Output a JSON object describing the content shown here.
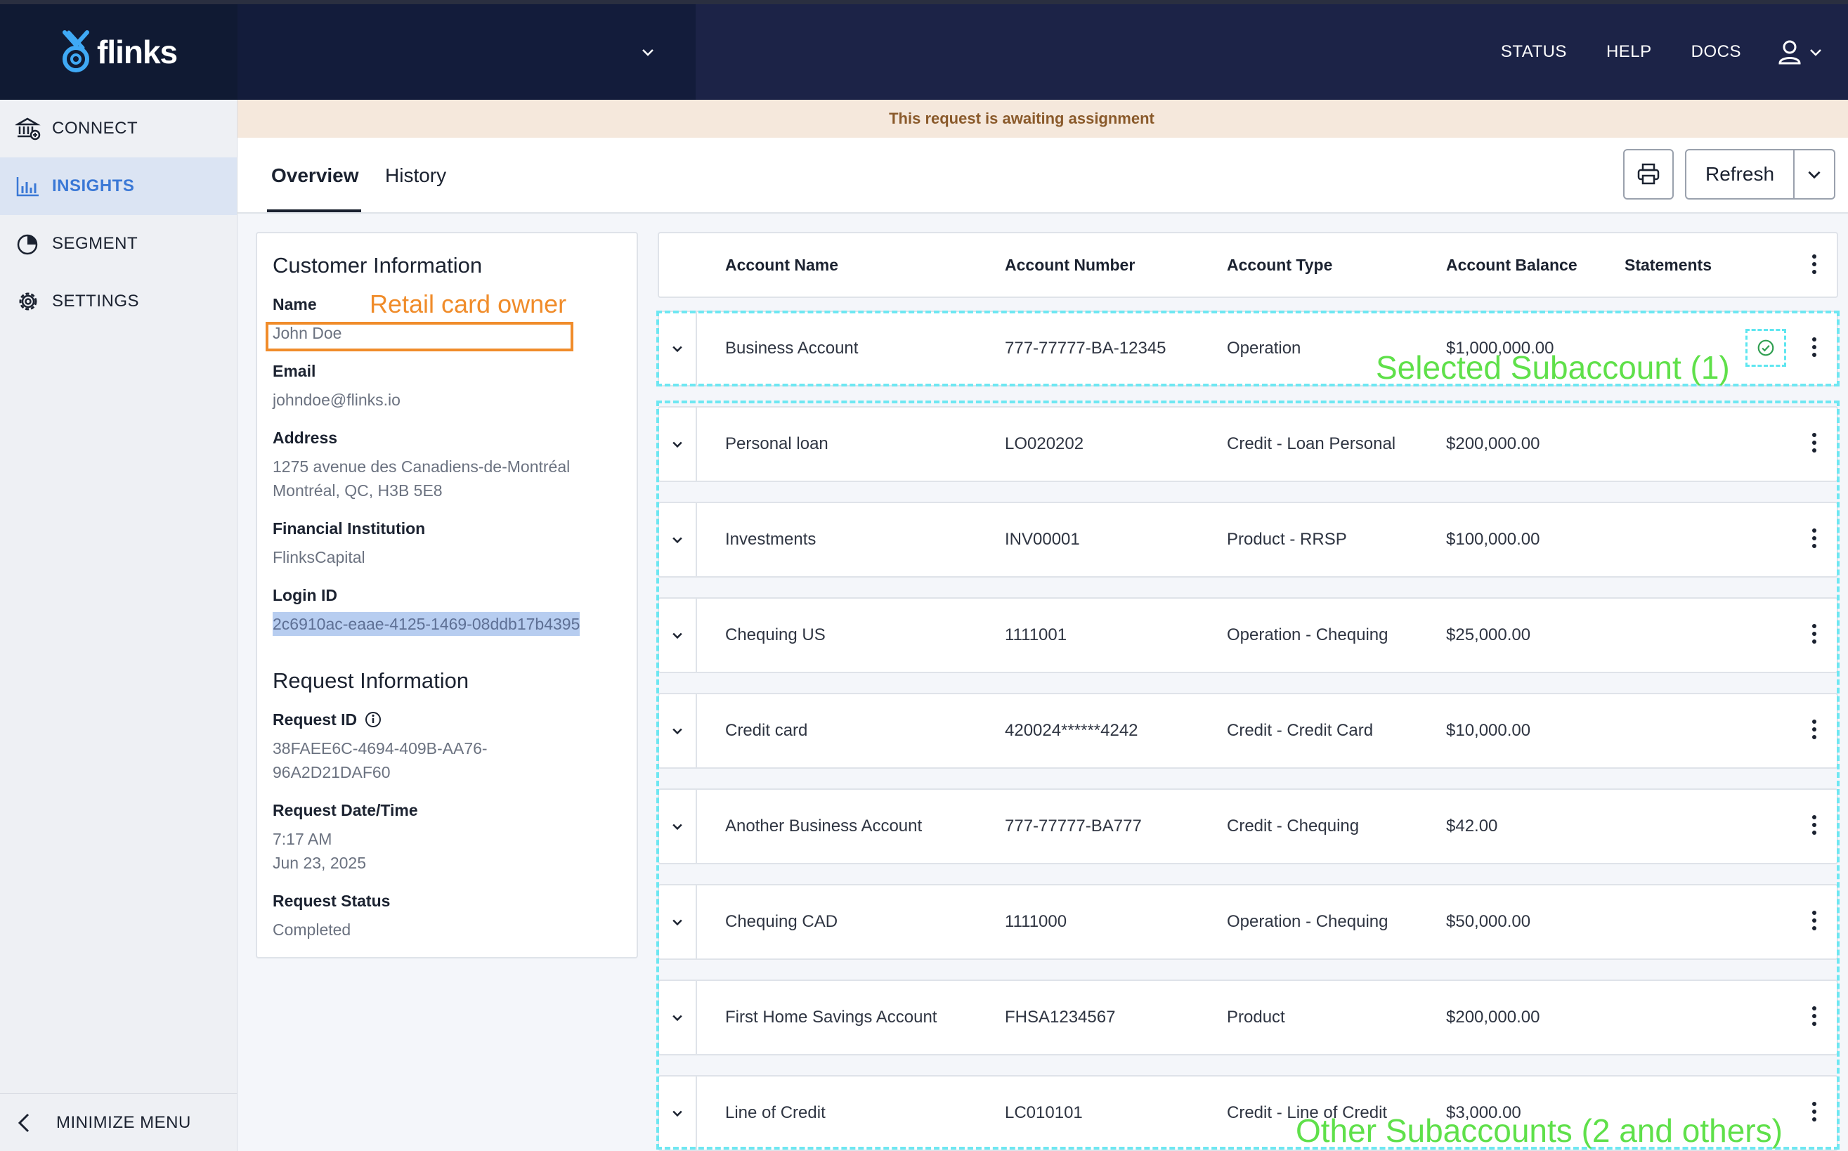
{
  "brand": {
    "name": "flinks"
  },
  "topnav": {
    "status": "STATUS",
    "help": "HELP",
    "docs": "DOCS"
  },
  "sidebar": {
    "items": [
      {
        "label": "CONNECT",
        "icon": "bank-icon"
      },
      {
        "label": "INSIGHTS",
        "icon": "bar-chart-icon"
      },
      {
        "label": "SEGMENT",
        "icon": "pie-chart-icon"
      },
      {
        "label": "SETTINGS",
        "icon": "gear-icon"
      }
    ],
    "minimize_label": "MINIMIZE MENU"
  },
  "banner": {
    "text": "This request is awaiting assignment"
  },
  "tabs": {
    "overview": "Overview",
    "history": "History"
  },
  "toolbar": {
    "refresh_label": "Refresh"
  },
  "customer": {
    "title": "Customer Information",
    "name_label": "Name",
    "name_value": "John Doe",
    "email_label": "Email",
    "email_value": "johndoe@flinks.io",
    "address_label": "Address",
    "address_line1": "1275 avenue des Canadiens-de-Montréal",
    "address_line2": "Montréal, QC, H3B 5E8",
    "institution_label": "Financial Institution",
    "institution_value": "FlinksCapital",
    "login_label": "Login ID",
    "login_value": "2c6910ac-eaae-4125-1469-08ddb17b4395"
  },
  "request": {
    "title": "Request Information",
    "id_label": "Request ID",
    "id_line1": "38FAEE6C-4694-409B-AA76-",
    "id_line2": "96A2D21DAF60",
    "datetime_label": "Request Date/Time",
    "time_value": "7:17 AM",
    "date_value": "Jun 23, 2025",
    "status_label": "Request Status",
    "status_value": "Completed"
  },
  "table": {
    "headers": [
      "Account Name",
      "Account Number",
      "Account Type",
      "Account Balance",
      "Statements"
    ],
    "rows": [
      {
        "name": "Business Account",
        "number": "777-77777-BA-12345",
        "type": "Operation",
        "balance": "$1,000,000.00"
      },
      {
        "name": "Personal loan",
        "number": "LO020202",
        "type": "Credit - Loan Personal",
        "balance": "$200,000.00"
      },
      {
        "name": "Investments",
        "number": "INV00001",
        "type": "Product - RRSP",
        "balance": "$100,000.00"
      },
      {
        "name": "Chequing US",
        "number": "1111001",
        "type": "Operation - Chequing",
        "balance": "$25,000.00"
      },
      {
        "name": "Credit card",
        "number": "420024******4242",
        "type": "Credit - Credit Card",
        "balance": "$10,000.00"
      },
      {
        "name": "Another Business Account",
        "number": "777-77777-BA777",
        "type": "Credit - Chequing",
        "balance": "$42.00"
      },
      {
        "name": "Chequing CAD",
        "number": "1111000",
        "type": "Operation - Chequing",
        "balance": "$50,000.00"
      },
      {
        "name": "First Home Savings Account",
        "number": "FHSA1234567",
        "type": "Product",
        "balance": "$200,000.00"
      },
      {
        "name": "Line of Credit",
        "number": "LC010101",
        "type": "Credit - Line of Credit",
        "balance": "$3,000.00"
      }
    ]
  },
  "annotations": {
    "retail_owner": "Retail card owner",
    "selected": "Selected Subaccount (1)",
    "others": "Other Subaccounts (2 and others)"
  },
  "colors": {
    "topbar": "#1c2347",
    "accent": "#3a78d6",
    "banner_bg": "#f5e8dc",
    "annotation_orange": "#f08c2a",
    "annotation_green": "#5fe04a",
    "annotation_cyan": "#6ee7f2"
  }
}
